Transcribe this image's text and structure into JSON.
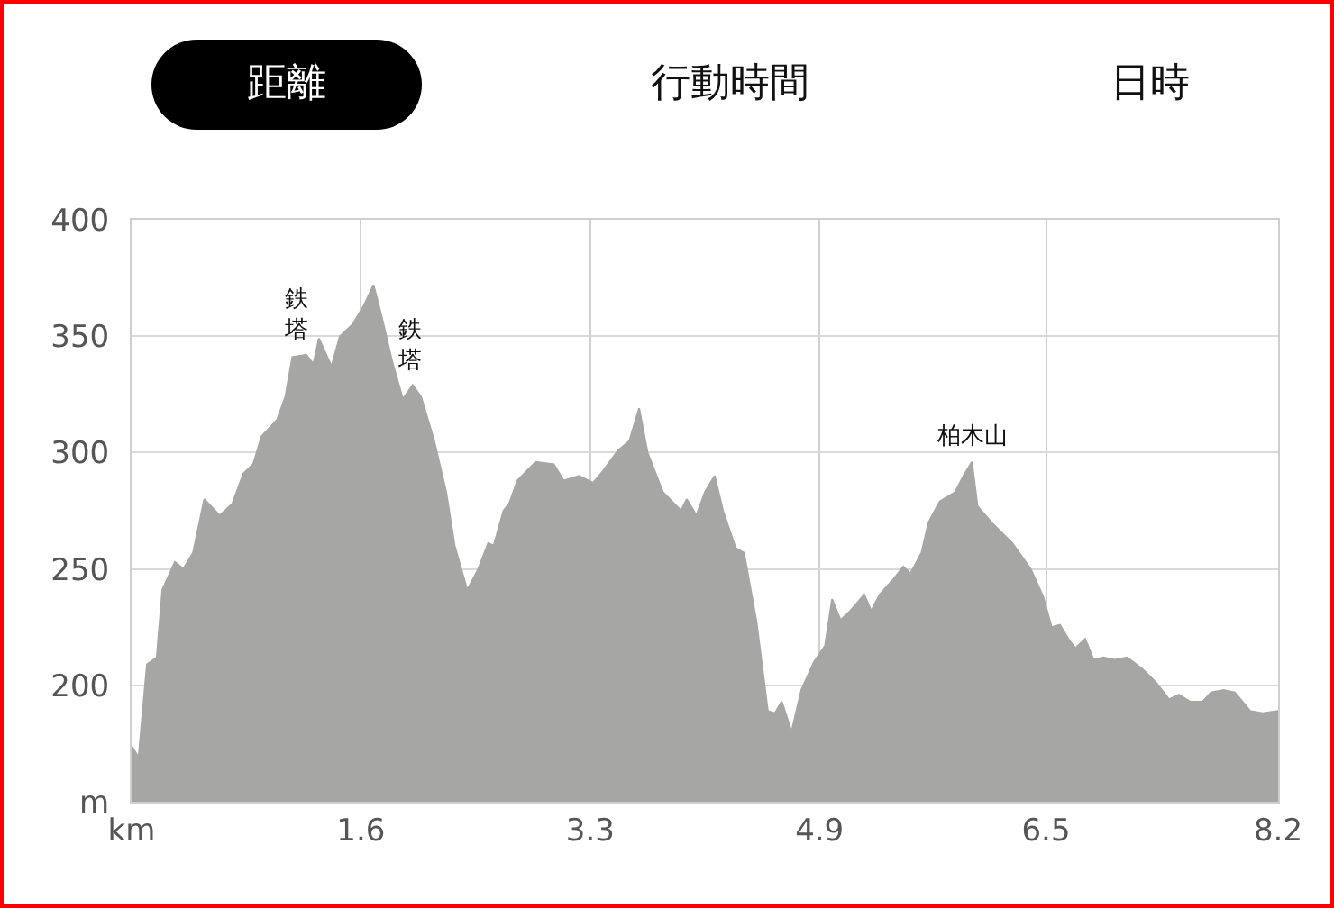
{
  "chart_data": {
    "type": "area",
    "annotations": [
      "距離",
      "行動時間",
      "日時",
      {
        "text": "鉄塔",
        "x": 1.17,
        "y": 342
      },
      {
        "text": "鉄塔",
        "x": 1.99,
        "y": 329
      },
      {
        "text": "柏木山",
        "x": 6.01,
        "y": 296
      }
    ],
    "x": [
      0,
      0.05,
      0.11,
      0.18,
      0.22,
      0.31,
      0.37,
      0.44,
      0.52,
      0.63,
      0.72,
      0.8,
      0.87,
      0.93,
      1.04,
      1.1,
      1.15,
      1.25,
      1.3,
      1.34,
      1.43,
      1.49,
      1.58,
      1.66,
      1.73,
      1.79,
      1.86,
      1.94,
      2.01,
      2.07,
      2.16,
      2.25,
      2.31,
      2.4,
      2.48,
      2.55,
      2.59,
      2.66,
      2.7,
      2.76,
      2.89,
      3.02,
      3.09,
      3.2,
      3.3,
      3.37,
      3.48,
      3.56,
      3.63,
      3.69,
      3.8,
      3.93,
      3.97,
      4.04,
      4.1,
      4.17,
      4.23,
      4.32,
      4.38,
      4.47,
      4.55,
      4.6,
      4.65,
      4.72,
      4.79,
      4.88,
      4.96,
      5.01,
      5.07,
      5.14,
      5.24,
      5.29,
      5.35,
      5.44,
      5.52,
      5.57,
      5.65,
      5.7,
      5.78,
      5.89,
      5.95,
      6.01,
      6.05,
      6.15,
      6.3,
      6.43,
      6.52,
      6.58,
      6.64,
      6.71,
      6.75,
      6.82,
      6.88,
      6.95,
      7.03,
      7.12,
      7.23,
      7.33,
      7.42,
      7.49,
      7.57,
      7.66,
      7.72,
      7.81,
      7.89,
      8.0,
      8.09,
      8.2
    ],
    "series": [
      {
        "color": "#a6a7a4",
        "values": [
          174,
          169,
          209,
          212,
          241,
          253,
          250,
          257,
          280,
          273,
          278,
          291,
          295,
          307,
          314,
          324,
          341,
          342,
          338,
          349,
          337,
          350,
          355,
          363,
          372,
          358,
          340,
          323,
          329,
          324,
          306,
          283,
          260,
          241,
          250,
          261,
          260,
          275,
          278,
          288,
          296,
          295,
          288,
          290,
          287,
          292,
          301,
          305,
          319,
          300,
          283,
          275,
          280,
          273,
          283,
          290,
          275,
          259,
          257,
          227,
          189,
          188,
          193,
          180,
          198,
          210,
          217,
          237,
          228,
          232,
          239,
          232,
          239,
          245,
          251,
          248,
          257,
          270,
          279,
          283,
          290,
          296,
          277,
          270,
          261,
          250,
          238,
          225,
          226,
          219,
          216,
          220,
          211,
          212,
          211,
          212,
          207,
          201,
          194,
          196,
          193,
          193,
          197,
          198,
          197,
          189,
          188,
          189
        ]
      }
    ],
    "xlim": [
      0,
      8.2
    ],
    "xticks": [
      {
        "value": 0,
        "label": "km"
      },
      {
        "value": 1.64,
        "label": "1.6"
      },
      {
        "value": 3.28,
        "label": "3.3"
      },
      {
        "value": 4.92,
        "label": "4.9"
      },
      {
        "value": 6.54,
        "label": "6.5"
      },
      {
        "value": 8.2,
        "label": "8.2"
      }
    ],
    "ylim": [
      150,
      400
    ],
    "yticks": [
      {
        "value": 150,
        "label": "m"
      },
      200,
      250,
      300,
      350,
      400
    ],
    "grid": true,
    "marker": "none",
    "line_style": "solid"
  }
}
